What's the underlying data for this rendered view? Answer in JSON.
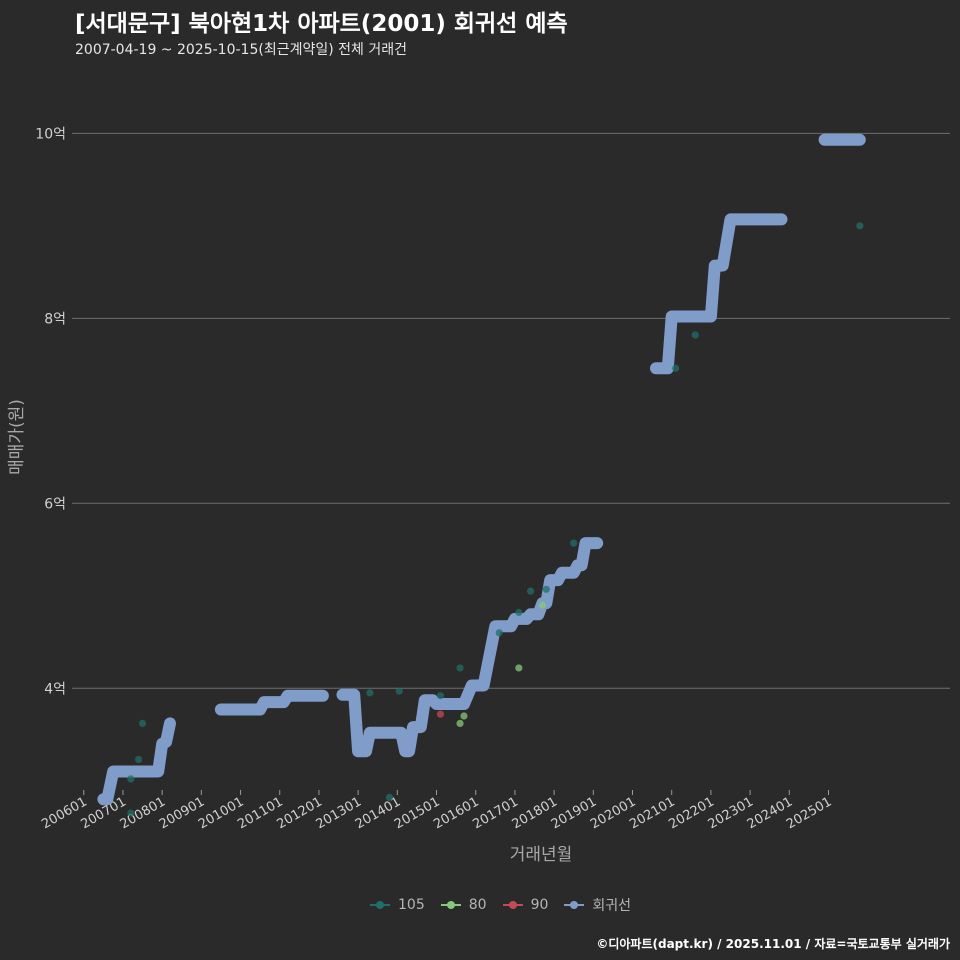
{
  "title": "[서대문구] 북아현1차 아파트(2001) 회귀선 예측",
  "subtitle": "2007-04-19 ~ 2025-10-15(최근계약일) 전체 거래건",
  "caption": "©디아파트(dapt.kr) / 2025.11.01 / 자료=국토교통부 실거래가",
  "chart_data": {
    "type": "line",
    "xlabel": "거래년월",
    "ylabel": "매매가(원)",
    "x_range": [
      2005.7,
      2028.1
    ],
    "y_range": [
      2.9,
      10.75
    ],
    "y_ticks": [
      {
        "value": 4,
        "label": "4억"
      },
      {
        "value": 6,
        "label": "6억"
      },
      {
        "value": 8,
        "label": "8억"
      },
      {
        "value": 10,
        "label": "10억"
      }
    ],
    "x_ticks": [
      {
        "value": 2006.0,
        "label": "200601"
      },
      {
        "value": 2007.0,
        "label": "200701"
      },
      {
        "value": 2008.0,
        "label": "200801"
      },
      {
        "value": 2009.0,
        "label": "200901"
      },
      {
        "value": 2010.0,
        "label": "201001"
      },
      {
        "value": 2011.0,
        "label": "201101"
      },
      {
        "value": 2012.0,
        "label": "201201"
      },
      {
        "value": 2013.0,
        "label": "201301"
      },
      {
        "value": 2014.0,
        "label": "201401"
      },
      {
        "value": 2015.0,
        "label": "201501"
      },
      {
        "value": 2016.0,
        "label": "201601"
      },
      {
        "value": 2017.0,
        "label": "201701"
      },
      {
        "value": 2018.0,
        "label": "201801"
      },
      {
        "value": 2019.0,
        "label": "201901"
      },
      {
        "value": 2020.0,
        "label": "202001"
      },
      {
        "value": 2021.0,
        "label": "202101"
      },
      {
        "value": 2022.0,
        "label": "202201"
      },
      {
        "value": 2023.0,
        "label": "202301"
      },
      {
        "value": 2024.0,
        "label": "202401"
      },
      {
        "value": 2025.0,
        "label": "202501"
      }
    ],
    "legend": [
      {
        "name": "105",
        "color": "#1f6f6a",
        "type": "point"
      },
      {
        "name": "80",
        "color": "#86c97a",
        "type": "point"
      },
      {
        "name": "90",
        "color": "#c44a56",
        "type": "point"
      },
      {
        "name": "회귀선",
        "color": "#7f9dc8",
        "type": "line"
      }
    ],
    "series": [
      {
        "name": "105",
        "color": "#1f6f6a",
        "points": [
          [
            2007.2,
            3.02
          ],
          [
            2007.2,
            2.65
          ],
          [
            2007.4,
            3.23
          ],
          [
            2007.5,
            3.62
          ],
          [
            2013.3,
            3.95
          ],
          [
            2013.8,
            2.82
          ],
          [
            2014.05,
            3.97
          ],
          [
            2015.1,
            3.92
          ],
          [
            2015.6,
            4.22
          ],
          [
            2016.6,
            4.6
          ],
          [
            2017.1,
            4.82
          ],
          [
            2017.4,
            5.05
          ],
          [
            2017.8,
            5.07
          ],
          [
            2018.5,
            5.57
          ],
          [
            2021.1,
            7.46
          ],
          [
            2021.6,
            7.82
          ],
          [
            2025.8,
            9.0
          ]
        ]
      },
      {
        "name": "80",
        "color": "#86c97a",
        "points": [
          [
            2015.6,
            3.62
          ],
          [
            2015.7,
            3.7
          ],
          [
            2017.1,
            4.22
          ],
          [
            2017.7,
            4.9
          ]
        ]
      },
      {
        "name": "90",
        "color": "#c44a56",
        "points": [
          [
            2015.1,
            3.72
          ]
        ]
      },
      {
        "name": "회귀선",
        "color": "#7f9dc8",
        "segments": [
          [
            [
              2006.5,
              2.8
            ],
            [
              2006.6,
              2.8
            ],
            [
              2006.75,
              3.1
            ],
            [
              2007.9,
              3.1
            ],
            [
              2008.0,
              3.4
            ],
            [
              2008.1,
              3.42
            ],
            [
              2008.2,
              3.62
            ]
          ],
          [
            [
              2009.5,
              3.77
            ],
            [
              2010.5,
              3.77
            ],
            [
              2010.6,
              3.85
            ],
            [
              2011.1,
              3.85
            ],
            [
              2011.2,
              3.92
            ],
            [
              2012.1,
              3.92
            ]
          ],
          [
            [
              2012.6,
              3.93
            ],
            [
              2012.9,
              3.93
            ],
            [
              2013.0,
              3.32
            ],
            [
              2013.2,
              3.32
            ],
            [
              2013.3,
              3.52
            ],
            [
              2014.1,
              3.52
            ],
            [
              2014.2,
              3.32
            ],
            [
              2014.3,
              3.32
            ],
            [
              2014.4,
              3.58
            ],
            [
              2014.6,
              3.58
            ],
            [
              2014.7,
              3.87
            ],
            [
              2014.9,
              3.87
            ],
            [
              2015.0,
              3.83
            ],
            [
              2015.7,
              3.83
            ],
            [
              2015.9,
              4.03
            ],
            [
              2016.2,
              4.03
            ],
            [
              2016.5,
              4.67
            ],
            [
              2016.9,
              4.67
            ],
            [
              2017.0,
              4.75
            ],
            [
              2017.3,
              4.75
            ],
            [
              2017.4,
              4.8
            ],
            [
              2017.6,
              4.8
            ],
            [
              2017.7,
              4.92
            ],
            [
              2017.8,
              4.92
            ],
            [
              2017.9,
              5.17
            ],
            [
              2018.1,
              5.17
            ],
            [
              2018.2,
              5.25
            ],
            [
              2018.5,
              5.25
            ],
            [
              2018.6,
              5.33
            ],
            [
              2018.7,
              5.33
            ],
            [
              2018.8,
              5.57
            ],
            [
              2019.1,
              5.57
            ]
          ],
          [
            [
              2020.6,
              7.46
            ],
            [
              2020.9,
              7.46
            ],
            [
              2021.0,
              8.02
            ],
            [
              2022.0,
              8.02
            ],
            [
              2022.1,
              8.57
            ],
            [
              2022.3,
              8.57
            ],
            [
              2022.5,
              9.07
            ],
            [
              2023.8,
              9.07
            ]
          ],
          [
            [
              2024.9,
              9.93
            ],
            [
              2025.8,
              9.93
            ]
          ]
        ]
      }
    ]
  }
}
